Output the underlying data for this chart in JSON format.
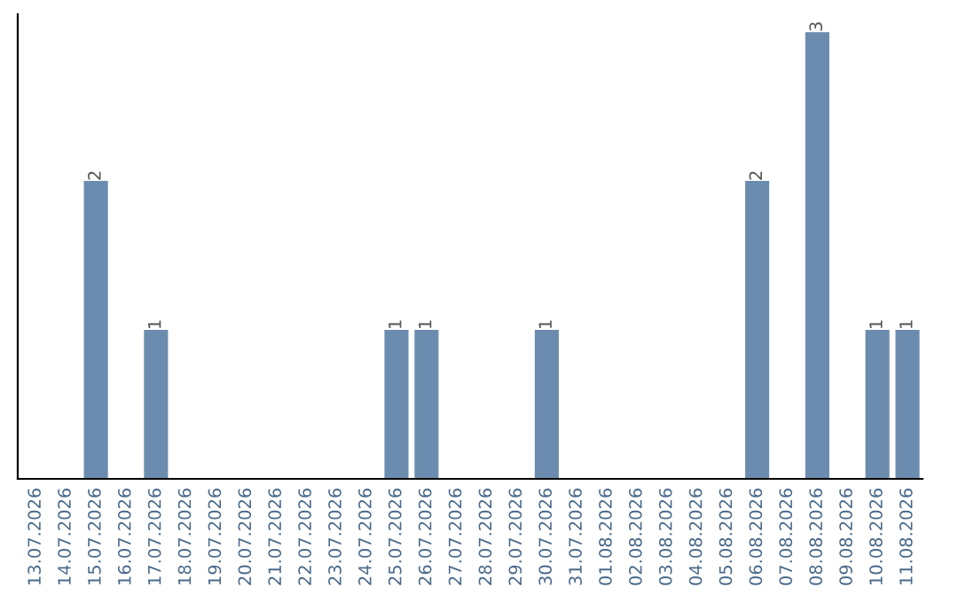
{
  "chart_data": {
    "type": "bar",
    "categories": [
      "13.07.2026",
      "14.07.2026",
      "15.07.2026",
      "16.07.2026",
      "17.07.2026",
      "18.07.2026",
      "19.07.2026",
      "20.07.2026",
      "21.07.2026",
      "22.07.2026",
      "23.07.2026",
      "24.07.2026",
      "25.07.2026",
      "26.07.2026",
      "27.07.2026",
      "28.07.2026",
      "29.07.2026",
      "30.07.2026",
      "31.07.2026",
      "01.08.2026",
      "02.08.2026",
      "03.08.2026",
      "04.08.2026",
      "05.08.2026",
      "06.08.2026",
      "07.08.2026",
      "08.08.2026",
      "09.08.2026",
      "10.08.2026",
      "11.08.2026"
    ],
    "values": [
      0,
      0,
      2,
      0,
      1,
      0,
      0,
      0,
      0,
      0,
      0,
      0,
      1,
      1,
      0,
      0,
      0,
      1,
      0,
      0,
      0,
      0,
      0,
      0,
      2,
      0,
      3,
      0,
      1,
      1
    ],
    "value_labels": [
      null,
      null,
      "2",
      null,
      "1",
      null,
      null,
      null,
      null,
      null,
      null,
      null,
      "1",
      "1",
      null,
      null,
      null,
      "1",
      null,
      null,
      null,
      null,
      null,
      null,
      "2",
      null,
      "3",
      null,
      "1",
      "1"
    ],
    "color": "#6b8cae",
    "tick_labels": "x",
    "grid": false
  }
}
